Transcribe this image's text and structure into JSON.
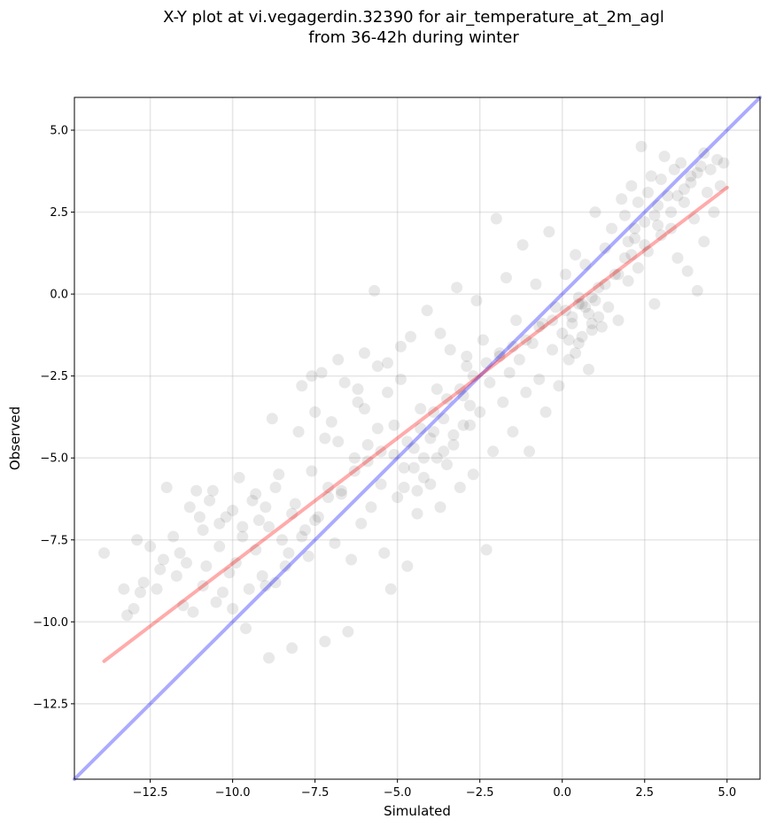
{
  "chart_data": {
    "type": "scatter",
    "title_line1": "X-Y plot at vi.vegagerdin.32390 for air_temperature_at_2m_agl",
    "title_line2": "from 36-42h during winter",
    "xlabel": "Simulated",
    "ylabel": "Observed",
    "xlim": [
      -14.8,
      6.0
    ],
    "ylim": [
      -14.8,
      6.0
    ],
    "xticks": [
      -12.5,
      -10.0,
      -7.5,
      -5.0,
      -2.5,
      0.0,
      2.5,
      5.0
    ],
    "yticks": [
      -12.5,
      -10.0,
      -7.5,
      -5.0,
      -2.5,
      0.0,
      2.5,
      5.0
    ],
    "xtick_labels": [
      "−12.5",
      "−10.0",
      "−7.5",
      "−5.0",
      "−2.5",
      "0.0",
      "2.5",
      "5.0"
    ],
    "ytick_labels": [
      "−12.5",
      "−10.0",
      "−7.5",
      "−5.0",
      "−2.5",
      "0.0",
      "2.5",
      "5.0"
    ],
    "grid": true,
    "point_color": "#000000",
    "point_alpha": 0.09,
    "reference_line": {
      "color": "#0000ff",
      "alpha": 0.33,
      "x": [
        -14.8,
        6.0
      ],
      "y": [
        -14.8,
        6.0
      ]
    },
    "fit_line": {
      "color": "#ff0000",
      "alpha": 0.33,
      "x": [
        -13.9,
        5.0
      ],
      "y": [
        -11.2,
        3.25
      ]
    },
    "series": [
      {
        "points": [
          [
            -13.9,
            -7.9
          ],
          [
            -13.3,
            -9.0
          ],
          [
            -13.2,
            -9.8
          ],
          [
            -13.0,
            -9.6
          ],
          [
            -12.9,
            -7.5
          ],
          [
            -12.8,
            -9.1
          ],
          [
            -12.7,
            -8.8
          ],
          [
            -12.5,
            -7.7
          ],
          [
            -12.3,
            -9.0
          ],
          [
            -12.1,
            -8.1
          ],
          [
            -12.0,
            -5.9
          ],
          [
            -11.8,
            -7.4
          ],
          [
            -11.7,
            -8.6
          ],
          [
            -11.5,
            -9.5
          ],
          [
            -11.4,
            -8.2
          ],
          [
            -11.2,
            -9.7
          ],
          [
            -11.1,
            -6.0
          ],
          [
            -11.0,
            -6.8
          ],
          [
            -10.9,
            -7.2
          ],
          [
            -10.8,
            -8.3
          ],
          [
            -10.6,
            -6.0
          ],
          [
            -10.5,
            -9.4
          ],
          [
            -10.4,
            -7.0
          ],
          [
            -10.2,
            -6.8
          ],
          [
            -10.1,
            -8.5
          ],
          [
            -10.0,
            -9.6
          ],
          [
            -9.8,
            -5.6
          ],
          [
            -9.7,
            -7.1
          ],
          [
            -9.6,
            -10.2
          ],
          [
            -9.4,
            -6.3
          ],
          [
            -9.3,
            -7.8
          ],
          [
            -9.2,
            -6.9
          ],
          [
            -9.0,
            -8.9
          ],
          [
            -8.9,
            -11.1
          ],
          [
            -8.8,
            -3.8
          ],
          [
            -8.6,
            -5.5
          ],
          [
            -8.5,
            -7.5
          ],
          [
            -8.4,
            -8.3
          ],
          [
            -8.2,
            -10.8
          ],
          [
            -8.1,
            -6.4
          ],
          [
            -8.0,
            -4.2
          ],
          [
            -7.9,
            -2.8
          ],
          [
            -7.8,
            -7.2
          ],
          [
            -7.7,
            -8.0
          ],
          [
            -7.6,
            -5.4
          ],
          [
            -7.5,
            -3.6
          ],
          [
            -7.4,
            -6.8
          ],
          [
            -7.3,
            -2.4
          ],
          [
            -7.2,
            -10.6
          ],
          [
            -7.1,
            -5.9
          ],
          [
            -7.0,
            -3.9
          ],
          [
            -6.9,
            -7.6
          ],
          [
            -6.8,
            -4.5
          ],
          [
            -6.7,
            -6.1
          ],
          [
            -6.6,
            -2.7
          ],
          [
            -6.5,
            -10.3
          ],
          [
            -6.4,
            -8.1
          ],
          [
            -6.3,
            -5.0
          ],
          [
            -6.2,
            -3.3
          ],
          [
            -6.1,
            -7.0
          ],
          [
            -6.0,
            -1.8
          ],
          [
            -5.9,
            -4.6
          ],
          [
            -5.8,
            -6.5
          ],
          [
            -5.7,
            0.1
          ],
          [
            -5.6,
            -2.2
          ],
          [
            -5.5,
            -5.8
          ],
          [
            -5.4,
            -7.9
          ],
          [
            -5.3,
            -3.0
          ],
          [
            -5.2,
            -9.0
          ],
          [
            -5.1,
            -4.0
          ],
          [
            -5.0,
            -6.2
          ],
          [
            -4.9,
            -2.6
          ],
          [
            -4.8,
            -5.3
          ],
          [
            -4.7,
            -8.3
          ],
          [
            -4.6,
            -1.3
          ],
          [
            -4.5,
            -4.7
          ],
          [
            -4.4,
            -6.7
          ],
          [
            -4.3,
            -3.5
          ],
          [
            -4.2,
            -5.0
          ],
          [
            -4.1,
            -0.5
          ],
          [
            -4.0,
            -5.8
          ],
          [
            -3.9,
            -4.2
          ],
          [
            -3.8,
            -2.9
          ],
          [
            -3.7,
            -6.5
          ],
          [
            -3.6,
            -3.8
          ],
          [
            -3.5,
            -5.2
          ],
          [
            -3.4,
            -1.7
          ],
          [
            -3.3,
            -4.6
          ],
          [
            -3.2,
            0.2
          ],
          [
            -3.1,
            -5.9
          ],
          [
            -3.0,
            -3.1
          ],
          [
            -2.9,
            -2.2
          ],
          [
            -2.8,
            -4.0
          ],
          [
            -2.7,
            -5.5
          ],
          [
            -2.6,
            -0.2
          ],
          [
            -2.5,
            -3.6
          ],
          [
            -2.4,
            -1.4
          ],
          [
            -2.3,
            -7.8
          ],
          [
            -2.2,
            -2.7
          ],
          [
            -2.1,
            -4.8
          ],
          [
            -2.0,
            2.3
          ],
          [
            -1.9,
            -1.8
          ],
          [
            -1.8,
            -3.3
          ],
          [
            -1.7,
            0.5
          ],
          [
            -1.6,
            -2.4
          ],
          [
            -1.5,
            -4.2
          ],
          [
            -1.4,
            -0.8
          ],
          [
            -1.3,
            -2.0
          ],
          [
            -1.2,
            1.5
          ],
          [
            -1.1,
            -3.0
          ],
          [
            -1.0,
            -4.8
          ],
          [
            -0.9,
            -1.5
          ],
          [
            -0.8,
            0.3
          ],
          [
            -0.7,
            -2.6
          ],
          [
            -0.6,
            -0.9
          ],
          [
            -0.5,
            -3.6
          ],
          [
            -0.4,
            1.9
          ],
          [
            -0.3,
            -1.7
          ],
          [
            -0.2,
            -0.4
          ],
          [
            -0.1,
            -2.8
          ],
          [
            0.0,
            -1.2
          ],
          [
            0.1,
            0.6
          ],
          [
            0.2,
            -2.0
          ],
          [
            0.3,
            -0.7
          ],
          [
            0.4,
            1.2
          ],
          [
            0.5,
            -1.5
          ],
          [
            0.6,
            -0.3
          ],
          [
            0.7,
            0.9
          ],
          [
            0.8,
            -2.3
          ],
          [
            0.9,
            -0.9
          ],
          [
            1.0,
            2.5
          ],
          [
            1.1,
            0.2
          ],
          [
            1.2,
            -1.0
          ],
          [
            1.3,
            1.4
          ],
          [
            1.4,
            -0.4
          ],
          [
            1.5,
            2.0
          ],
          [
            1.6,
            0.6
          ],
          [
            1.7,
            -0.8
          ],
          [
            1.8,
            2.9
          ],
          [
            1.9,
            1.1
          ],
          [
            2.0,
            0.4
          ],
          [
            2.1,
            3.3
          ],
          [
            2.2,
            1.7
          ],
          [
            2.3,
            0.8
          ],
          [
            2.4,
            4.5
          ],
          [
            2.5,
            2.2
          ],
          [
            2.6,
            1.3
          ],
          [
            2.7,
            3.6
          ],
          [
            2.8,
            -0.3
          ],
          [
            2.9,
            2.7
          ],
          [
            3.0,
            1.8
          ],
          [
            3.1,
            4.2
          ],
          [
            3.2,
            3.0
          ],
          [
            3.3,
            2.0
          ],
          [
            3.4,
            3.8
          ],
          [
            3.5,
            1.1
          ],
          [
            3.6,
            4.0
          ],
          [
            3.7,
            2.8
          ],
          [
            3.8,
            0.7
          ],
          [
            3.9,
            3.4
          ],
          [
            4.0,
            2.3
          ],
          [
            4.1,
            0.1
          ],
          [
            4.2,
            3.9
          ],
          [
            4.3,
            1.6
          ],
          [
            4.4,
            3.1
          ],
          [
            4.5,
            3.8
          ],
          [
            4.6,
            2.5
          ],
          [
            4.7,
            4.1
          ],
          [
            4.8,
            3.3
          ],
          [
            4.9,
            4.0
          ],
          [
            -12.2,
            -8.4
          ],
          [
            -11.6,
            -7.9
          ],
          [
            -10.9,
            -8.9
          ],
          [
            -10.3,
            -9.1
          ],
          [
            -9.9,
            -8.2
          ],
          [
            -9.5,
            -9.0
          ],
          [
            -9.1,
            -8.6
          ],
          [
            -8.7,
            -8.8
          ],
          [
            -8.3,
            -7.9
          ],
          [
            -7.9,
            -7.4
          ],
          [
            -7.5,
            -6.9
          ],
          [
            -7.1,
            -6.2
          ],
          [
            -6.7,
            -6.0
          ],
          [
            -6.3,
            -5.4
          ],
          [
            -5.9,
            -5.1
          ],
          [
            -5.5,
            -4.8
          ],
          [
            -5.1,
            -4.9
          ],
          [
            -4.7,
            -4.5
          ],
          [
            -4.3,
            -4.1
          ],
          [
            -3.9,
            -3.6
          ],
          [
            -3.5,
            -3.2
          ],
          [
            -3.1,
            -2.9
          ],
          [
            -2.7,
            -2.5
          ],
          [
            -2.3,
            -2.1
          ],
          [
            -1.9,
            -1.9
          ],
          [
            -1.5,
            -1.6
          ],
          [
            -1.1,
            -1.4
          ],
          [
            -0.7,
            -1.0
          ],
          [
            -0.3,
            -0.8
          ],
          [
            0.1,
            -0.5
          ],
          [
            0.5,
            -0.3
          ],
          [
            0.9,
            -0.1
          ],
          [
            1.3,
            0.3
          ],
          [
            1.7,
            0.6
          ],
          [
            2.1,
            1.2
          ],
          [
            2.5,
            1.5
          ],
          [
            2.9,
            2.1
          ],
          [
            3.3,
            2.5
          ],
          [
            3.7,
            3.2
          ],
          [
            4.1,
            3.7
          ],
          [
            -4.5,
            -5.3
          ],
          [
            -4.2,
            -5.6
          ],
          [
            -3.8,
            -5.0
          ],
          [
            -4.0,
            -4.4
          ],
          [
            -3.6,
            -4.8
          ],
          [
            -4.4,
            -6.0
          ],
          [
            -3.3,
            -4.3
          ],
          [
            -3.0,
            -4.0
          ],
          [
            -2.8,
            -3.4
          ],
          [
            -4.8,
            -5.9
          ],
          [
            0.3,
            -0.9
          ],
          [
            0.6,
            -1.3
          ],
          [
            0.8,
            -0.6
          ],
          [
            1.0,
            -0.2
          ],
          [
            0.4,
            -1.8
          ],
          [
            0.7,
            -0.4
          ],
          [
            1.1,
            -0.7
          ],
          [
            0.2,
            -1.4
          ],
          [
            0.9,
            -1.1
          ],
          [
            0.5,
            -0.1
          ],
          [
            -6.8,
            -2.0
          ],
          [
            -7.6,
            -2.5
          ],
          [
            -6.2,
            -2.9
          ],
          [
            -5.3,
            -2.1
          ],
          [
            -4.9,
            -1.6
          ],
          [
            -3.7,
            -1.2
          ],
          [
            -2.9,
            -1.9
          ],
          [
            -6.0,
            -3.5
          ],
          [
            -5.6,
            -4.1
          ],
          [
            -7.2,
            -4.4
          ],
          [
            -10.7,
            -6.3
          ],
          [
            -10.0,
            -6.6
          ],
          [
            -9.3,
            -6.1
          ],
          [
            -8.7,
            -5.9
          ],
          [
            -9.7,
            -7.4
          ],
          [
            -11.3,
            -6.5
          ],
          [
            -8.9,
            -7.1
          ],
          [
            -8.2,
            -6.7
          ],
          [
            -9.0,
            -6.5
          ],
          [
            -10.4,
            -7.7
          ],
          [
            1.9,
            2.4
          ],
          [
            2.3,
            2.8
          ],
          [
            2.6,
            3.1
          ],
          [
            3.0,
            3.5
          ],
          [
            2.2,
            2.0
          ],
          [
            2.8,
            2.4
          ],
          [
            3.5,
            3.0
          ],
          [
            3.9,
            3.6
          ],
          [
            4.3,
            4.3
          ],
          [
            2.0,
            1.6
          ]
        ]
      }
    ]
  }
}
